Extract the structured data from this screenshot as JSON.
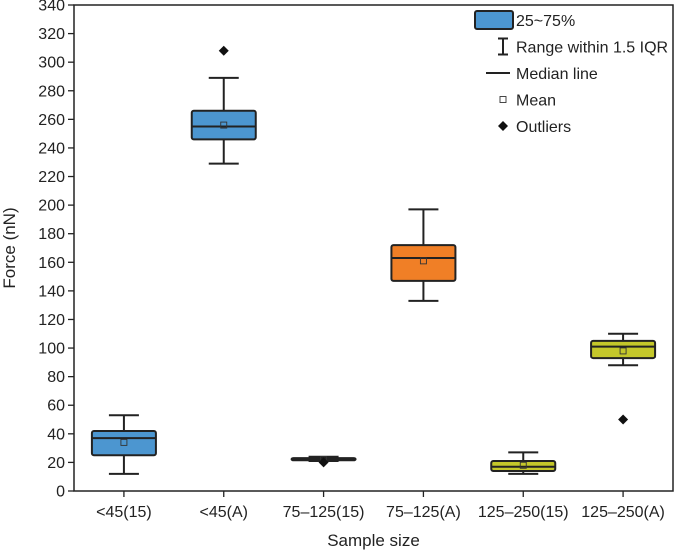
{
  "chart_data": {
    "type": "box",
    "xlabel": "Sample size",
    "ylabel": "Force (nN)",
    "ylim": [
      0,
      340
    ],
    "yticks": [
      0,
      20,
      40,
      60,
      80,
      100,
      120,
      140,
      160,
      180,
      200,
      220,
      240,
      260,
      280,
      300,
      320,
      340
    ],
    "categories": [
      "<45(15)",
      "<45(A)",
      "75–125(15)",
      "75–125(A)",
      "125–250(15)",
      "125–250(A)"
    ],
    "boxes": [
      {
        "category": "<45(15)",
        "color": "#4c96d0",
        "whisker_low": 12,
        "q1": 25,
        "median": 37,
        "q3": 42,
        "whisker_high": 53,
        "mean": 34,
        "outliers": []
      },
      {
        "category": "<45(A)",
        "color": "#4c96d0",
        "whisker_low": 229,
        "q1": 246,
        "median": 255,
        "q3": 266,
        "whisker_high": 289,
        "mean": 256,
        "outliers": [
          308
        ]
      },
      {
        "category": "75–125(15)",
        "color": "#4c96d0",
        "whisker_low": 21,
        "q1": 21.5,
        "median": 22.3,
        "q3": 23,
        "whisker_high": 24,
        "mean": 22,
        "outliers": [
          20
        ]
      },
      {
        "category": "75–125(A)",
        "color": "#f07f26",
        "whisker_low": 133,
        "q1": 147,
        "median": 163,
        "q3": 172,
        "whisker_high": 197,
        "mean": 161,
        "outliers": []
      },
      {
        "category": "125–250(15)",
        "color": "#c4c72a",
        "whisker_low": 12,
        "q1": 14,
        "median": 17,
        "q3": 21,
        "whisker_high": 27,
        "mean": 18,
        "outliers": []
      },
      {
        "category": "125–250(A)",
        "color": "#c4c72a",
        "whisker_low": 88,
        "q1": 93,
        "median": 101,
        "q3": 105,
        "whisker_high": 110,
        "mean": 98,
        "outliers": [
          50
        ]
      }
    ],
    "legend": {
      "position": "top-right",
      "items": [
        {
          "symbol": "box",
          "label": "25~75%"
        },
        {
          "symbol": "range",
          "label": "Range within 1.5 IQR"
        },
        {
          "symbol": "median",
          "label": "Median line"
        },
        {
          "symbol": "mean",
          "label": "Mean"
        },
        {
          "symbol": "outlier",
          "label": "Outliers"
        }
      ]
    }
  }
}
